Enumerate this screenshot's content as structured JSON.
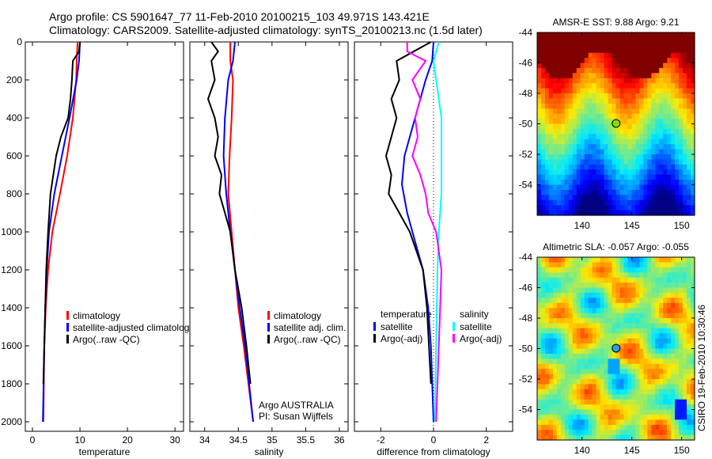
{
  "title": {
    "line1": "Argo profile: CS 5901647_77 11-Feb-2010 20100215_103 49.971S 143.421E",
    "line2": "Climatology: CARS2009. Satellite-adjusted climatology: synTS_20100213.nc (1.5d later)"
  },
  "colors": {
    "climatology": "#ff0000",
    "satellite": "#0000ff",
    "argo": "#000000",
    "sal_satellite": "#00ffff",
    "sal_argo": "#ff00ff"
  },
  "credit": "CSIRO 19-Feb-2010 10:30:46",
  "chart_data": [
    {
      "type": "line",
      "id": "temperature",
      "xlabel": "temperature",
      "ylabel": "",
      "xlim": [
        -1.5,
        31.8
      ],
      "ylim": [
        2050,
        0
      ],
      "xticks": [
        0,
        10,
        20,
        30
      ],
      "yticks": [
        0,
        200,
        400,
        600,
        800,
        1000,
        1200,
        1400,
        1600,
        1800,
        2000
      ],
      "legend": [
        "climatology",
        "satellite-adjusted climatolog",
        "Argo(..raw -QC)"
      ],
      "series": [
        {
          "name": "climatology",
          "color": "#ff0000",
          "depth": [
            0,
            100,
            200,
            400,
            600,
            800,
            1000,
            1200,
            1400,
            1600,
            2000
          ],
          "values": [
            9.5,
            9.3,
            9.2,
            8.5,
            7.3,
            5.8,
            4.2,
            3.3,
            2.8,
            2.5,
            2.3
          ]
        },
        {
          "name": "satellite-adjusted climatology",
          "color": "#0000ff",
          "depth": [
            0,
            100,
            200,
            400,
            600,
            800,
            1000,
            1200,
            1400,
            1600,
            2000
          ],
          "values": [
            10,
            9.8,
            9.3,
            7.8,
            6.2,
            4.6,
            3.5,
            3.0,
            2.7,
            2.5,
            2.2
          ]
        },
        {
          "name": "Argo(..raw -QC)",
          "color": "#000000",
          "depth": [
            0,
            50,
            100,
            200,
            300,
            400,
            500,
            600,
            800,
            1000,
            1200,
            1600,
            1800
          ],
          "values": [
            10,
            9.8,
            8.5,
            8.3,
            8.0,
            7.5,
            6.0,
            5.0,
            3.8,
            3.3,
            2.9,
            2.5,
            2.3
          ]
        }
      ]
    },
    {
      "type": "line",
      "id": "salinity",
      "xlabel": "salinity",
      "xlim": [
        33.78,
        36.13
      ],
      "ylim": [
        2050,
        0
      ],
      "xticks": [
        34,
        34.5,
        35,
        35.5,
        36
      ],
      "legend": [
        "climatology",
        "satellite adj. clim.",
        "Argo(..raw -QC)"
      ],
      "annotation": [
        "Argo AUSTRALIA",
        "PI: Susan Wijffels"
      ],
      "series": [
        {
          "name": "climatology",
          "color": "#ff0000",
          "depth": [
            0,
            100,
            200,
            400,
            600,
            800,
            1000,
            1200,
            1400,
            1600,
            2000
          ],
          "values": [
            34.38,
            34.38,
            34.42,
            34.4,
            34.37,
            34.35,
            34.4,
            34.45,
            34.5,
            34.58,
            34.72
          ]
        },
        {
          "name": "satellite adj. clim.",
          "color": "#0000ff",
          "depth": [
            0,
            100,
            200,
            400,
            600,
            800,
            1000,
            1200,
            1400,
            1600,
            2000
          ],
          "values": [
            34.45,
            34.42,
            34.35,
            34.3,
            34.28,
            34.32,
            34.38,
            34.45,
            34.52,
            34.6,
            34.72
          ]
        },
        {
          "name": "Argo(..raw -QC)",
          "color": "#000000",
          "depth": [
            0,
            50,
            100,
            200,
            300,
            400,
            500,
            600,
            700,
            800,
            900,
            1000,
            1200,
            1400,
            1600,
            1800
          ],
          "values": [
            34.1,
            34.2,
            34.1,
            34.15,
            34.05,
            34.15,
            34.2,
            34.15,
            34.25,
            34.22,
            34.3,
            34.38,
            34.45,
            34.55,
            34.62,
            34.68
          ]
        }
      ]
    },
    {
      "type": "line",
      "id": "difference",
      "xlabel": "difference from climatology",
      "xlim": [
        -3.0,
        3.0
      ],
      "ylim": [
        2050,
        0
      ],
      "xticks": [
        -2,
        0,
        2
      ],
      "legend": {
        "temperature_title": "temperature",
        "salinity_title": "salinity",
        "temperature": [
          "satellite",
          "Argo(-adj)"
        ],
        "salinity": [
          "satellite",
          "Argo(-adj)"
        ]
      },
      "series": [
        {
          "name": "temperature satellite",
          "color": "#0000ff",
          "depth": [
            0,
            100,
            200,
            400,
            600,
            750,
            900,
            1000,
            1200,
            1400,
            1600,
            2000
          ],
          "values": [
            0,
            -0.05,
            -0.3,
            -0.7,
            -1.1,
            -1.2,
            -1.0,
            -0.8,
            -0.4,
            -0.2,
            -0.1,
            0
          ]
        },
        {
          "name": "temperature Argo(-adj)",
          "color": "#000000",
          "depth": [
            0,
            100,
            200,
            300,
            400,
            500,
            600,
            700,
            800,
            900,
            1000,
            1200,
            1400,
            1800
          ],
          "values": [
            -0.1,
            -1.4,
            -1.3,
            -1.6,
            -1.4,
            -1.6,
            -1.8,
            -1.6,
            -1.7,
            -1.3,
            -0.9,
            -0.4,
            -0.25,
            -0.1
          ]
        },
        {
          "name": "salinity satellite",
          "color": "#00ffff",
          "depth": [
            0,
            100,
            200,
            400,
            600,
            800,
            1000,
            1200,
            1600,
            2000
          ],
          "values": [
            0.2,
            0,
            0.1,
            0.3,
            0.3,
            0.3,
            0.2,
            0.15,
            0.1,
            0.05
          ]
        },
        {
          "name": "salinity Argo(-adj)",
          "color": "#ff00ff",
          "depth": [
            0,
            50,
            100,
            200,
            300,
            400,
            500,
            600,
            700,
            800,
            900,
            1000,
            1200,
            1600,
            2000
          ],
          "values": [
            -1,
            -1,
            -0.3,
            -0.8,
            -0.5,
            -0.7,
            -0.6,
            -0.8,
            -0.5,
            -0.3,
            -0.2,
            0.1,
            0.3,
            0.2,
            0.1
          ]
        }
      ]
    },
    {
      "type": "heatmap",
      "id": "sst-map",
      "title": "AMSR-E SST: 9.88 Argo: 9.21",
      "xlim": [
        135.5,
        151.3
      ],
      "ylim": [
        -56,
        -44
      ],
      "xticks": [
        140,
        145,
        150
      ],
      "yticks": [
        -44,
        -46,
        -48,
        -50,
        -52,
        -54
      ],
      "marker": {
        "lon": 143.421,
        "lat": -49.971
      }
    },
    {
      "type": "heatmap",
      "id": "sla-map",
      "title": "Altimetric SLA: -0.057 Argo: -0.055",
      "xlim": [
        135.5,
        151.3
      ],
      "ylim": [
        -56,
        -44
      ],
      "xticks": [
        140,
        145,
        150
      ],
      "yticks": [
        -44,
        -46,
        -48,
        -50,
        -52,
        -54
      ],
      "marker": {
        "lon": 143.421,
        "lat": -49.971
      }
    }
  ]
}
